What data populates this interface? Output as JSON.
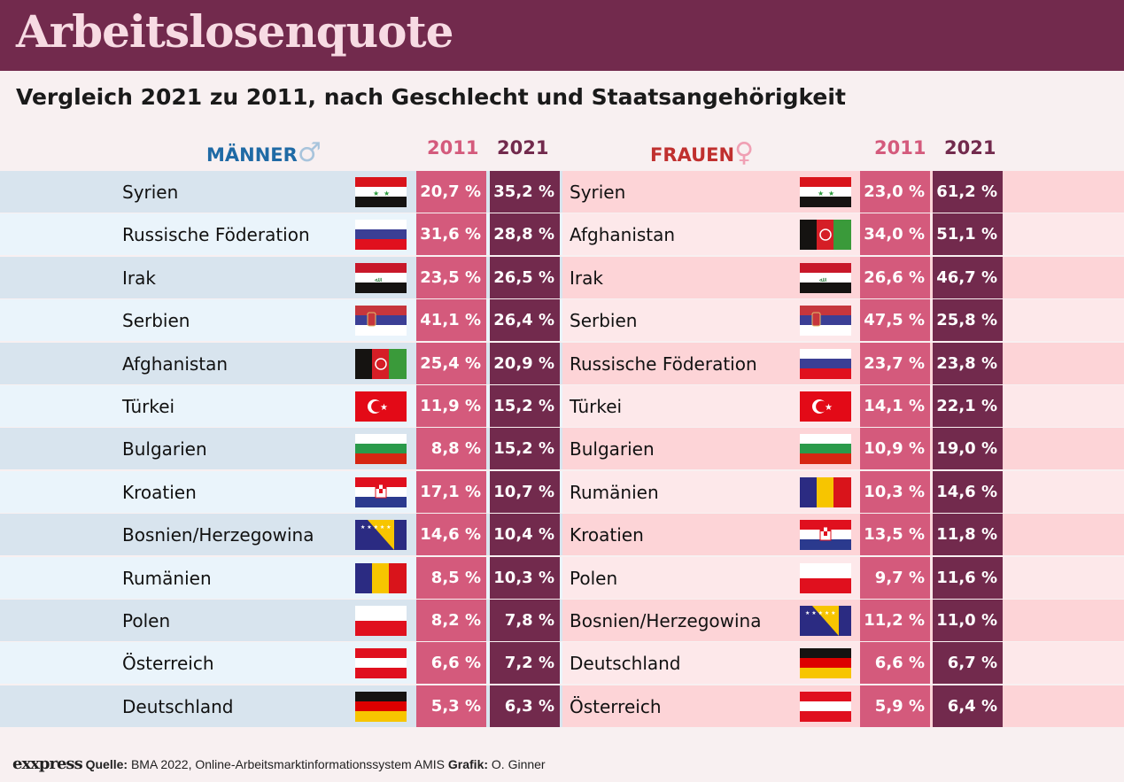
{
  "header": {
    "title": "Arbeitslosenquote",
    "subtitle": "Vergleich 2021 zu 2011, nach Geschlecht und Staatsangehörigkeit"
  },
  "colors": {
    "header": "#722a4d",
    "c2011": "#d45a7c",
    "c2021": "#722a4d",
    "men": "#1f6aa5",
    "women": "#c0302f"
  },
  "chart_data": {
    "type": "table",
    "title": "Arbeitslosenquote",
    "subtitle": "Vergleich 2021 zu 2011, nach Geschlecht und Staatsangehörigkeit",
    "columns": [
      "2011",
      "2021"
    ],
    "groups": [
      {
        "name": "MÄNNER",
        "symbol": "♂",
        "rows": [
          {
            "country": "Syrien",
            "flag": "syria",
            "v2011": "20,7 %",
            "v2021": "35,2 %"
          },
          {
            "country": "Russische Föderation",
            "flag": "russia",
            "v2011": "31,6 %",
            "v2021": "28,8 %"
          },
          {
            "country": "Irak",
            "flag": "iraq",
            "v2011": "23,5 %",
            "v2021": "26,5 %"
          },
          {
            "country": "Serbien",
            "flag": "serbia",
            "v2011": "41,1 %",
            "v2021": "26,4 %"
          },
          {
            "country": "Afghanistan",
            "flag": "afghanistan",
            "v2011": "25,4 %",
            "v2021": "20,9 %"
          },
          {
            "country": "Türkei",
            "flag": "turkey",
            "v2011": "11,9 %",
            "v2021": "15,2 %"
          },
          {
            "country": "Bulgarien",
            "flag": "bulgaria",
            "v2011": "8,8 %",
            "v2021": "15,2 %"
          },
          {
            "country": "Kroatien",
            "flag": "croatia",
            "v2011": "17,1 %",
            "v2021": "10,7 %"
          },
          {
            "country": "Bosnien/Herzegowina",
            "flag": "bosnia",
            "v2011": "14,6 %",
            "v2021": "10,4 %"
          },
          {
            "country": "Rumänien",
            "flag": "romania",
            "v2011": "8,5 %",
            "v2021": "10,3 %"
          },
          {
            "country": "Polen",
            "flag": "poland",
            "v2011": "8,2 %",
            "v2021": "7,8 %"
          },
          {
            "country": "Österreich",
            "flag": "austria",
            "v2011": "6,6 %",
            "v2021": "7,2 %"
          },
          {
            "country": "Deutschland",
            "flag": "germany",
            "v2011": "5,3 %",
            "v2021": "6,3 %"
          }
        ]
      },
      {
        "name": "FRAUEN",
        "symbol": "♀",
        "rows": [
          {
            "country": "Syrien",
            "flag": "syria",
            "v2011": "23,0 %",
            "v2021": "61,2 %"
          },
          {
            "country": "Afghanistan",
            "flag": "afghanistan",
            "v2011": "34,0 %",
            "v2021": "51,1 %"
          },
          {
            "country": "Irak",
            "flag": "iraq",
            "v2011": "26,6 %",
            "v2021": "46,7 %"
          },
          {
            "country": "Serbien",
            "flag": "serbia",
            "v2011": "47,5 %",
            "v2021": "25,8 %"
          },
          {
            "country": "Russische Föderation",
            "flag": "russia",
            "v2011": "23,7 %",
            "v2021": "23,8 %"
          },
          {
            "country": "Türkei",
            "flag": "turkey",
            "v2011": "14,1 %",
            "v2021": "22,1 %"
          },
          {
            "country": "Bulgarien",
            "flag": "bulgaria",
            "v2011": "10,9 %",
            "v2021": "19,0 %"
          },
          {
            "country": "Rumänien",
            "flag": "romania",
            "v2011": "10,3 %",
            "v2021": "14,6 %"
          },
          {
            "country": "Kroatien",
            "flag": "croatia",
            "v2011": "13,5 %",
            "v2021": "11,8 %"
          },
          {
            "country": "Polen",
            "flag": "poland",
            "v2011": "9,7 %",
            "v2021": "11,6 %"
          },
          {
            "country": "Bosnien/Herzegowina",
            "flag": "bosnia",
            "v2011": "11,2 %",
            "v2021": "11,0 %"
          },
          {
            "country": "Deutschland",
            "flag": "germany",
            "v2011": "6,6 %",
            "v2021": "6,7 %"
          },
          {
            "country": "Österreich",
            "flag": "austria",
            "v2011": "5,9 %",
            "v2021": "6,4 %"
          }
        ]
      }
    ]
  },
  "footer": {
    "logo": "exxpress",
    "source_label": "Quelle:",
    "source": "BMA 2022, Online-Arbeitsmarktinformationssystem AMIS",
    "graphic_label": "Grafik:",
    "graphic": "O. Ginner"
  }
}
